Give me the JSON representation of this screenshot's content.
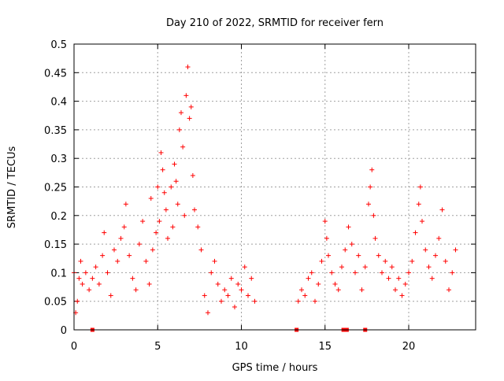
{
  "chart_data": {
    "type": "scatter",
    "title": "Day 210 of 2022, SRMTID for receiver fern",
    "xlabel": "GPS time / hours",
    "ylabel": "SRMTID / TECUs",
    "xlim": [
      0,
      24
    ],
    "ylim": [
      0,
      0.5
    ],
    "grid": true,
    "x_ticks": [
      {
        "value": 0,
        "label": "0"
      },
      {
        "value": 5,
        "label": "5"
      },
      {
        "value": 10,
        "label": "10"
      },
      {
        "value": 15,
        "label": "15"
      },
      {
        "value": 20,
        "label": "20"
      }
    ],
    "y_ticks": [
      {
        "value": 0,
        "label": "0"
      },
      {
        "value": 0.05,
        "label": "0.05"
      },
      {
        "value": 0.1,
        "label": "0.1"
      },
      {
        "value": 0.15,
        "label": "0.15"
      },
      {
        "value": 0.2,
        "label": "0.2"
      },
      {
        "value": 0.25,
        "label": "0.25"
      },
      {
        "value": 0.3,
        "label": "0.3"
      },
      {
        "value": 0.35,
        "label": "0.35"
      },
      {
        "value": 0.4,
        "label": "0.4"
      },
      {
        "value": 0.45,
        "label": "0.45"
      },
      {
        "value": 0.5,
        "label": "0.5"
      }
    ],
    "marker": "plus",
    "color": "#ff0000",
    "series": [
      {
        "values": [
          [
            0.0,
            0.1
          ],
          [
            0.1,
            0.03
          ],
          [
            0.2,
            0.05
          ],
          [
            0.3,
            0.09
          ],
          [
            0.4,
            0.12
          ],
          [
            0.5,
            0.08
          ],
          [
            0.7,
            0.1
          ],
          [
            0.9,
            0.07
          ],
          [
            1.1,
            0.09
          ],
          [
            1.3,
            0.11
          ],
          [
            1.5,
            0.08
          ],
          [
            1.7,
            0.13
          ],
          [
            1.8,
            0.17
          ],
          [
            2.0,
            0.1
          ],
          [
            2.2,
            0.06
          ],
          [
            2.4,
            0.14
          ],
          [
            2.6,
            0.12
          ],
          [
            2.8,
            0.16
          ],
          [
            3.0,
            0.18
          ],
          [
            3.1,
            0.22
          ],
          [
            3.3,
            0.13
          ],
          [
            3.5,
            0.09
          ],
          [
            3.7,
            0.07
          ],
          [
            3.9,
            0.15
          ],
          [
            4.1,
            0.19
          ],
          [
            4.3,
            0.12
          ],
          [
            4.5,
            0.08
          ],
          [
            4.7,
            0.14
          ],
          [
            4.9,
            0.17
          ],
          [
            4.6,
            0.23
          ],
          [
            5.0,
            0.25
          ],
          [
            5.1,
            0.19
          ],
          [
            5.2,
            0.31
          ],
          [
            5.3,
            0.28
          ],
          [
            5.4,
            0.24
          ],
          [
            5.5,
            0.21
          ],
          [
            5.6,
            0.16
          ],
          [
            5.8,
            0.25
          ],
          [
            5.9,
            0.18
          ],
          [
            6.0,
            0.29
          ],
          [
            6.1,
            0.26
          ],
          [
            6.2,
            0.22
          ],
          [
            6.3,
            0.35
          ],
          [
            6.4,
            0.38
          ],
          [
            6.5,
            0.32
          ],
          [
            6.6,
            0.2
          ],
          [
            6.7,
            0.41
          ],
          [
            6.8,
            0.46
          ],
          [
            6.9,
            0.37
          ],
          [
            7.0,
            0.39
          ],
          [
            7.1,
            0.27
          ],
          [
            7.2,
            0.21
          ],
          [
            7.4,
            0.18
          ],
          [
            7.6,
            0.14
          ],
          [
            7.8,
            0.06
          ],
          [
            8.0,
            0.03
          ],
          [
            8.2,
            0.1
          ],
          [
            8.4,
            0.12
          ],
          [
            8.6,
            0.08
          ],
          [
            8.8,
            0.05
          ],
          [
            9.0,
            0.07
          ],
          [
            9.2,
            0.06
          ],
          [
            9.4,
            0.09
          ],
          [
            9.6,
            0.04
          ],
          [
            9.8,
            0.08
          ],
          [
            10.0,
            0.07
          ],
          [
            10.2,
            0.11
          ],
          [
            10.4,
            0.06
          ],
          [
            10.6,
            0.09
          ],
          [
            10.8,
            0.05
          ],
          [
            13.4,
            0.05
          ],
          [
            13.6,
            0.07
          ],
          [
            13.8,
            0.06
          ],
          [
            14.0,
            0.09
          ],
          [
            14.2,
            0.1
          ],
          [
            14.4,
            0.05
          ],
          [
            14.6,
            0.08
          ],
          [
            14.8,
            0.12
          ],
          [
            15.0,
            0.19
          ],
          [
            15.1,
            0.16
          ],
          [
            15.2,
            0.13
          ],
          [
            15.4,
            0.1
          ],
          [
            15.6,
            0.08
          ],
          [
            15.8,
            0.07
          ],
          [
            16.0,
            0.11
          ],
          [
            16.2,
            0.14
          ],
          [
            16.4,
            0.18
          ],
          [
            16.6,
            0.15
          ],
          [
            16.8,
            0.1
          ],
          [
            17.0,
            0.13
          ],
          [
            17.2,
            0.07
          ],
          [
            17.4,
            0.11
          ],
          [
            17.6,
            0.22
          ],
          [
            17.7,
            0.25
          ],
          [
            17.8,
            0.28
          ],
          [
            17.9,
            0.2
          ],
          [
            18.0,
            0.16
          ],
          [
            18.2,
            0.13
          ],
          [
            18.4,
            0.1
          ],
          [
            18.6,
            0.12
          ],
          [
            18.8,
            0.09
          ],
          [
            19.0,
            0.11
          ],
          [
            19.2,
            0.07
          ],
          [
            19.4,
            0.09
          ],
          [
            19.6,
            0.06
          ],
          [
            19.8,
            0.08
          ],
          [
            20.0,
            0.1
          ],
          [
            20.2,
            0.12
          ],
          [
            20.4,
            0.17
          ],
          [
            20.6,
            0.22
          ],
          [
            20.7,
            0.25
          ],
          [
            20.8,
            0.19
          ],
          [
            21.0,
            0.14
          ],
          [
            21.2,
            0.11
          ],
          [
            21.4,
            0.09
          ],
          [
            21.6,
            0.13
          ],
          [
            21.8,
            0.16
          ],
          [
            22.0,
            0.21
          ],
          [
            22.2,
            0.12
          ],
          [
            22.4,
            0.07
          ],
          [
            22.6,
            0.1
          ],
          [
            22.8,
            0.14
          ]
        ]
      }
    ],
    "marks_at_zero_x": [
      1.1,
      13.3,
      16.1,
      16.3,
      17.4
    ]
  }
}
